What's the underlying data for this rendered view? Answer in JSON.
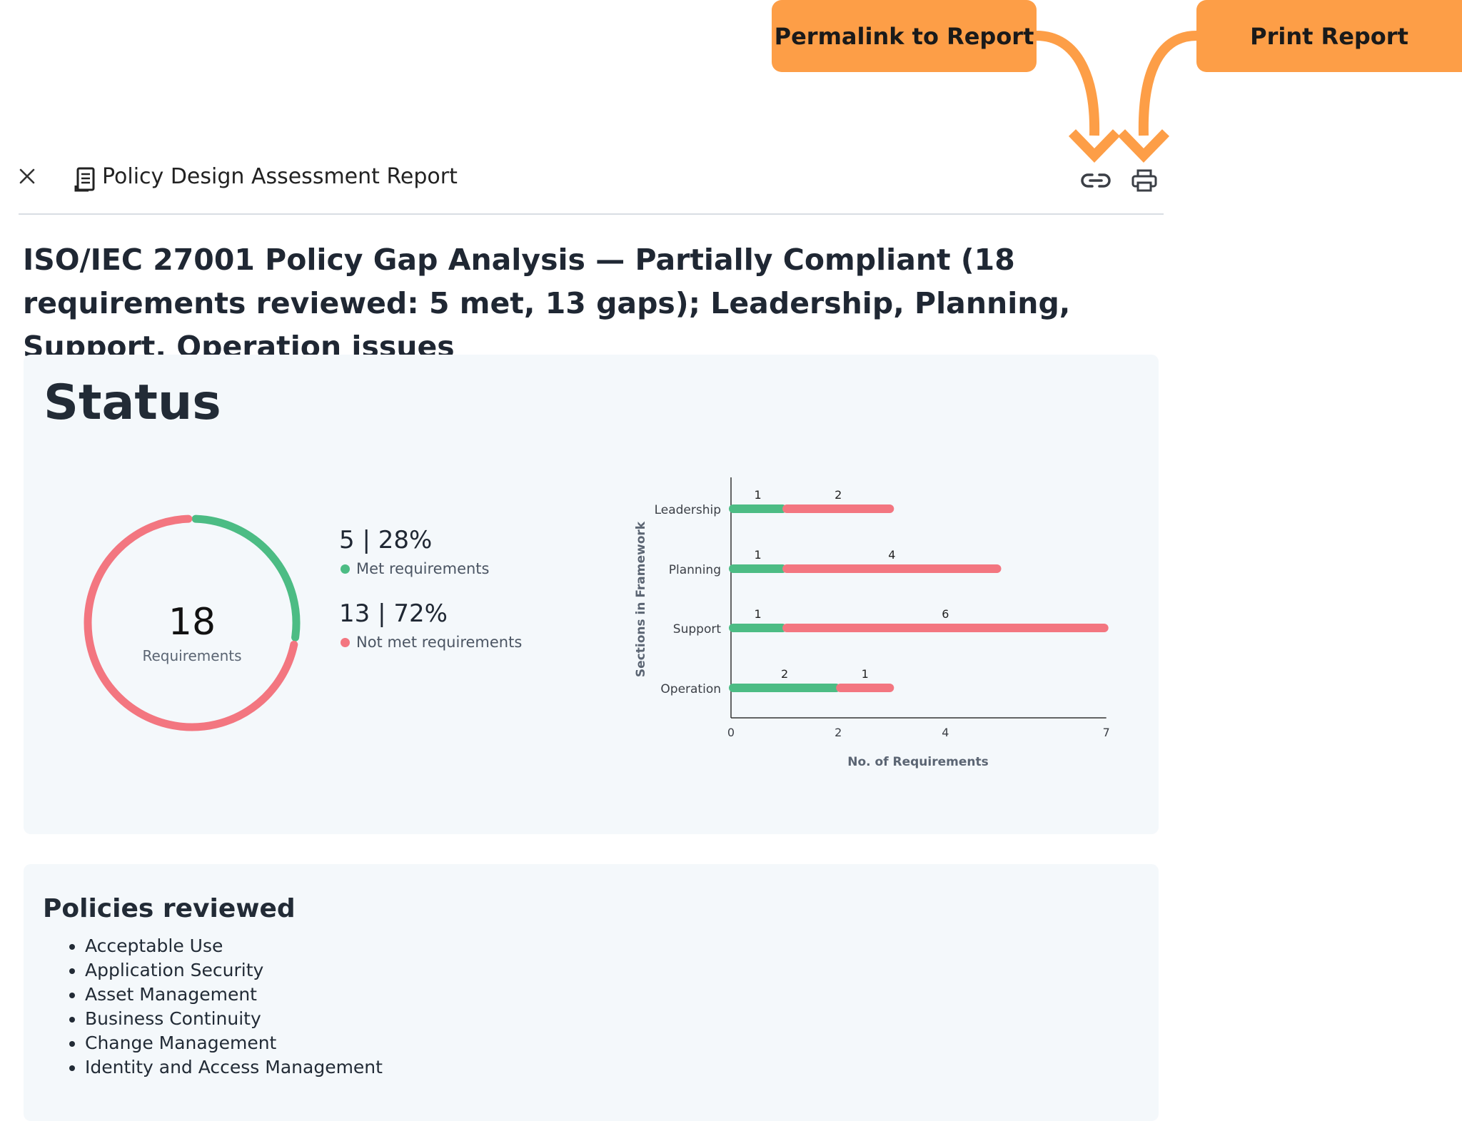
{
  "annotations": {
    "permalink_label": "Permalink to Report",
    "print_label": "Print Report",
    "color": "#fd9e47"
  },
  "header": {
    "title": "Policy Design Assessment Report",
    "icons": [
      "close-icon",
      "document-icon",
      "link-icon",
      "printer-icon"
    ]
  },
  "report": {
    "title": "ISO/IEC 27001 Policy Gap Analysis — Partially Compliant (18 requirements reviewed: 5 met, 13 gaps); Leadership, Planning, Support, Operation issues"
  },
  "status": {
    "heading": "Status",
    "total": "18",
    "total_label": "Requirements",
    "met_value": "5 | 28%",
    "met_label": "Met requirements",
    "not_met_value": "13 | 72%",
    "not_met_label": "Not met requirements",
    "colors": {
      "met": "#4cbc84",
      "not_met": "#f37680"
    }
  },
  "chart_data": [
    {
      "type": "pie",
      "labels": [
        "Met requirements",
        "Not met requirements"
      ],
      "values": [
        5,
        13
      ]
    },
    {
      "type": "bar",
      "orientation": "horizontal",
      "stacked": true,
      "categories": [
        "Leadership",
        "Planning",
        "Support",
        "Operation"
      ],
      "series": [
        {
          "values": [
            1,
            1,
            1,
            2
          ],
          "color": "#4cbc84"
        },
        {
          "values": [
            2,
            4,
            6,
            1
          ],
          "color": "#f37680"
        }
      ],
      "xlabel": "No. of Requirements",
      "ylabel": "Sections in Framework",
      "xlim": [
        0,
        7
      ],
      "xticks": [
        0,
        2,
        4,
        7
      ]
    }
  ],
  "policies": {
    "heading": "Policies reviewed",
    "items": [
      "Acceptable Use",
      "Application Security",
      "Asset Management",
      "Business Continuity",
      "Change Management",
      "Identity and Access Management"
    ]
  }
}
